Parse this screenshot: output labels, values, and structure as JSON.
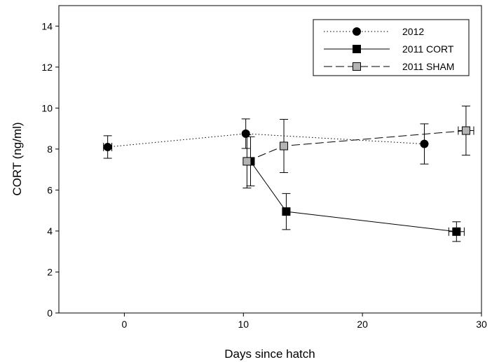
{
  "chart_data": {
    "type": "scatter",
    "xlabel": "Days since hatch",
    "ylabel": "CORT (ng/ml)",
    "xlim": [
      -5.5,
      30
    ],
    "ylim": [
      0,
      15
    ],
    "xticks": [
      0,
      10,
      20,
      30
    ],
    "yticks": [
      0,
      2,
      4,
      6,
      8,
      10,
      12,
      14
    ],
    "grid": false,
    "legend_position": "top-right",
    "series": [
      {
        "name": "2012",
        "line_style": "dotted",
        "marker": "circle",
        "marker_color": "#000000",
        "points": [
          {
            "x": -1.4,
            "y": 8.1,
            "y_err": 0.55,
            "x_err": 0.35
          },
          {
            "x": 10.2,
            "y": 8.75,
            "y_err": 0.72,
            "x_err": 0.0
          },
          {
            "x": 25.2,
            "y": 8.25,
            "y_err": 0.98,
            "x_err": 0.0
          }
        ]
      },
      {
        "name": "2011 CORT",
        "line_style": "solid",
        "marker": "square",
        "marker_color": "#000000",
        "points": [
          {
            "x": 10.6,
            "y": 7.4,
            "y_err": 1.2,
            "x_err": 0.25
          },
          {
            "x": 13.6,
            "y": 4.95,
            "y_err": 0.88,
            "x_err": 0.0
          },
          {
            "x": 27.9,
            "y": 3.97,
            "y_err": 0.48,
            "x_err": 0.65
          }
        ]
      },
      {
        "name": "2011 SHAM",
        "line_style": "dashed",
        "marker": "square",
        "marker_color": "#b4b4b4",
        "points": [
          {
            "x": 10.3,
            "y": 7.4,
            "y_err": 1.3,
            "x_err": 0.0
          },
          {
            "x": 13.4,
            "y": 8.15,
            "y_err": 1.3,
            "x_err": 0.0
          },
          {
            "x": 28.7,
            "y": 8.9,
            "y_err": 1.2,
            "x_err": 0.65
          }
        ]
      }
    ]
  }
}
